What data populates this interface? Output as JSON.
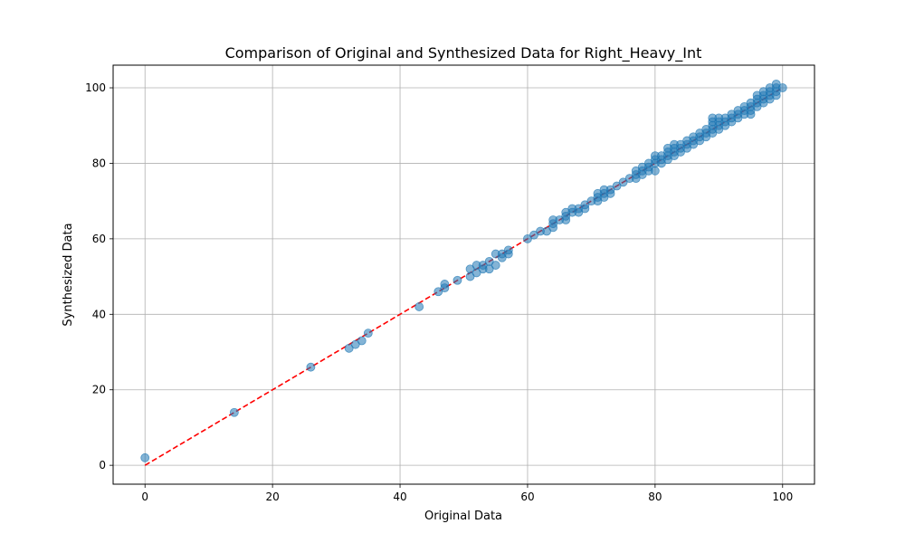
{
  "chart_data": {
    "type": "scatter",
    "title": "Comparison of Original and Synthesized Data for Right_Heavy_Int",
    "xlabel": "Original Data",
    "ylabel": "Synthesized Data",
    "xlim": [
      -5,
      105
    ],
    "ylim": [
      -5,
      106
    ],
    "xticks": [
      0,
      20,
      40,
      60,
      80,
      100
    ],
    "yticks": [
      0,
      20,
      40,
      60,
      80,
      100
    ],
    "xtick_labels": [
      "0",
      "20",
      "40",
      "60",
      "80",
      "100"
    ],
    "ytick_labels": [
      "0",
      "20",
      "40",
      "60",
      "80",
      "100"
    ],
    "grid": true,
    "legend": "none",
    "colors": {
      "points": "#1f77b4",
      "reference_line": "#ff0000",
      "grid": "#b0b0b0"
    },
    "reference_line": {
      "style": "dashed",
      "from": [
        0,
        0
      ],
      "to": [
        100,
        100
      ]
    },
    "series": [
      {
        "points": [
          [
            0,
            2
          ],
          [
            14,
            14
          ],
          [
            26,
            26
          ],
          [
            32,
            31
          ],
          [
            33,
            32
          ],
          [
            34,
            33
          ],
          [
            35,
            35
          ],
          [
            43,
            42
          ],
          [
            46,
            46
          ],
          [
            47,
            47
          ],
          [
            47,
            48
          ],
          [
            49,
            49
          ],
          [
            51,
            50
          ],
          [
            51,
            52
          ],
          [
            52,
            51
          ],
          [
            52,
            53
          ],
          [
            53,
            52
          ],
          [
            53,
            53
          ],
          [
            54,
            52
          ],
          [
            54,
            54
          ],
          [
            55,
            53
          ],
          [
            55,
            56
          ],
          [
            56,
            55
          ],
          [
            56,
            56
          ],
          [
            57,
            56
          ],
          [
            57,
            57
          ],
          [
            60,
            60
          ],
          [
            61,
            61
          ],
          [
            62,
            62
          ],
          [
            63,
            62
          ],
          [
            64,
            63
          ],
          [
            64,
            64
          ],
          [
            64,
            65
          ],
          [
            65,
            65
          ],
          [
            66,
            65
          ],
          [
            66,
            66
          ],
          [
            66,
            67
          ],
          [
            67,
            67
          ],
          [
            67,
            68
          ],
          [
            68,
            67
          ],
          [
            68,
            68
          ],
          [
            69,
            68
          ],
          [
            69,
            69
          ],
          [
            70,
            70
          ],
          [
            71,
            70
          ],
          [
            71,
            71
          ],
          [
            71,
            72
          ],
          [
            72,
            71
          ],
          [
            72,
            72
          ],
          [
            72,
            73
          ],
          [
            73,
            72
          ],
          [
            73,
            73
          ],
          [
            74,
            74
          ],
          [
            75,
            75
          ],
          [
            76,
            76
          ],
          [
            77,
            76
          ],
          [
            77,
            77
          ],
          [
            77,
            78
          ],
          [
            78,
            77
          ],
          [
            78,
            78
          ],
          [
            78,
            79
          ],
          [
            79,
            78
          ],
          [
            79,
            79
          ],
          [
            79,
            80
          ],
          [
            80,
            78
          ],
          [
            80,
            80
          ],
          [
            80,
            81
          ],
          [
            80,
            82
          ],
          [
            81,
            80
          ],
          [
            81,
            81
          ],
          [
            81,
            82
          ],
          [
            82,
            81
          ],
          [
            82,
            82
          ],
          [
            82,
            83
          ],
          [
            82,
            84
          ],
          [
            83,
            82
          ],
          [
            83,
            83
          ],
          [
            83,
            84
          ],
          [
            83,
            85
          ],
          [
            84,
            83
          ],
          [
            84,
            84
          ],
          [
            84,
            85
          ],
          [
            85,
            84
          ],
          [
            85,
            85
          ],
          [
            85,
            86
          ],
          [
            86,
            85
          ],
          [
            86,
            86
          ],
          [
            86,
            87
          ],
          [
            87,
            86
          ],
          [
            87,
            87
          ],
          [
            87,
            88
          ],
          [
            88,
            87
          ],
          [
            88,
            88
          ],
          [
            88,
            89
          ],
          [
            89,
            88
          ],
          [
            89,
            89
          ],
          [
            89,
            90
          ],
          [
            89,
            91
          ],
          [
            89,
            92
          ],
          [
            90,
            89
          ],
          [
            90,
            90
          ],
          [
            90,
            91
          ],
          [
            90,
            92
          ],
          [
            91,
            90
          ],
          [
            91,
            91
          ],
          [
            91,
            92
          ],
          [
            92,
            91
          ],
          [
            92,
            92
          ],
          [
            92,
            93
          ],
          [
            93,
            92
          ],
          [
            93,
            93
          ],
          [
            93,
            94
          ],
          [
            94,
            93
          ],
          [
            94,
            94
          ],
          [
            94,
            95
          ],
          [
            95,
            93
          ],
          [
            95,
            94
          ],
          [
            95,
            95
          ],
          [
            95,
            96
          ],
          [
            96,
            95
          ],
          [
            96,
            96
          ],
          [
            96,
            97
          ],
          [
            96,
            98
          ],
          [
            97,
            96
          ],
          [
            97,
            97
          ],
          [
            97,
            98
          ],
          [
            97,
            99
          ],
          [
            98,
            97
          ],
          [
            98,
            98
          ],
          [
            98,
            99
          ],
          [
            98,
            100
          ],
          [
            99,
            98
          ],
          [
            99,
            99
          ],
          [
            99,
            100
          ],
          [
            99,
            101
          ],
          [
            100,
            100
          ]
        ]
      }
    ]
  }
}
